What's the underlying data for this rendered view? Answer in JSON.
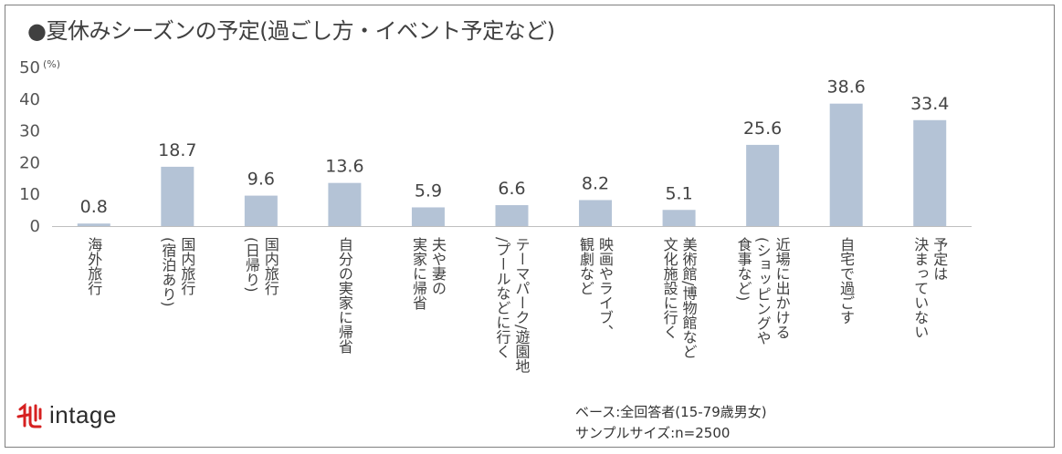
{
  "title": "●夏休みシーズンの予定(過ごし方・イベント予定など)",
  "chart_data": {
    "type": "bar",
    "title": "●夏休みシーズンの予定(過ごし方・イベント予定など)",
    "unit": "(%)",
    "categories": [
      "海外旅行",
      "国内旅行\n(宿泊あり)",
      "国内旅行\n(日帰り)",
      "自分の実家に帰省",
      "夫や妻の\n実家に帰省",
      "テーマパーク/遊園地\n/プールなどに行く",
      "映画やライブ、\n観劇など",
      "美術館/博物館など\n文化施設に行く",
      "近場に出かける\n(ショッピングや\n食事など)",
      "自宅で過ごす",
      "予定は\n決まっていない"
    ],
    "values": [
      0.8,
      18.7,
      9.6,
      13.6,
      5.9,
      6.6,
      8.2,
      5.1,
      25.6,
      38.6,
      33.4
    ],
    "value_labels": [
      "0.8",
      "18.7",
      "9.6",
      "13.6",
      "5.9",
      "6.6",
      "8.2",
      "5.1",
      "25.6",
      "38.6",
      "33.4"
    ],
    "yticks": [
      "0",
      "10",
      "20",
      "30",
      "40",
      "50"
    ],
    "ylim": [
      0,
      50
    ],
    "grid": false,
    "colors": {
      "bar": "#b4c3d6",
      "axis": "#bfbfbf"
    }
  },
  "logo": {
    "text": "intage",
    "mark_color": "#d62020"
  },
  "footnote": {
    "base": "ベース:全回答者(15-79歳男女)",
    "sample": "サンプルサイズ:n=2500"
  }
}
